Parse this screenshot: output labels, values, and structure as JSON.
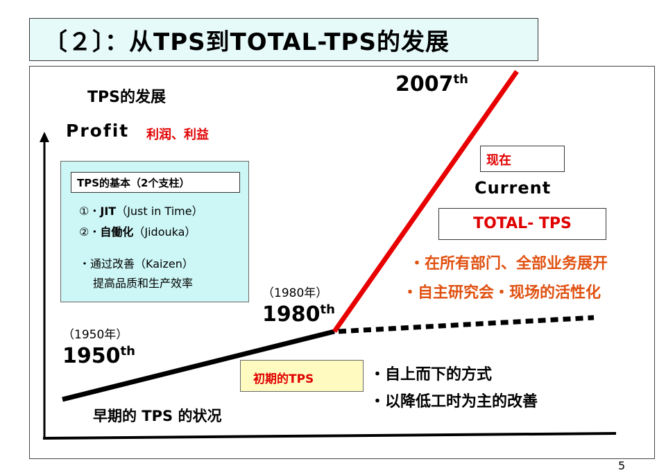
{
  "title": "〔２〕：从TPS到TOTAL-TPS的发展",
  "diagram": {
    "heading": "TPS的发展",
    "y_axis_label": "Profit",
    "y_axis_label_cn": "利润、利益",
    "pillars": {
      "header": "TPS的基本（2个支柱）",
      "item1_num": "①・",
      "item1_key": "JIT",
      "item1_detail": "（Just in Time）",
      "item2_num": "②・",
      "item2_key": "自働化",
      "item2_detail": "（Jidouka）",
      "kaizen": "・通过改善（Kaizen）",
      "kaizen_detail": "提高品质和生产效率"
    },
    "milestones": [
      {
        "paren": "（1950年）",
        "year": "1950",
        "sup": "th"
      },
      {
        "paren": "（1980年）",
        "year": "1980",
        "sup": "th"
      },
      {
        "year": "2007",
        "sup": "th"
      }
    ],
    "now_label": "现在",
    "current_label": "Current",
    "total_tps_label": "TOTAL- TPS",
    "total_points": [
      "・在所有部门、全部业务展开",
      "・自主研究会・现场的活性化"
    ],
    "early_tps_label": "初期的TPS",
    "early_points": [
      "・自上而下的方式",
      "・以降低工时为主的改善"
    ],
    "early_state": "早期的 TPS 的状况",
    "colors": {
      "total_line": "#e80000",
      "base_line": "#000000",
      "accent": "#e00000"
    }
  },
  "page_number": "5"
}
